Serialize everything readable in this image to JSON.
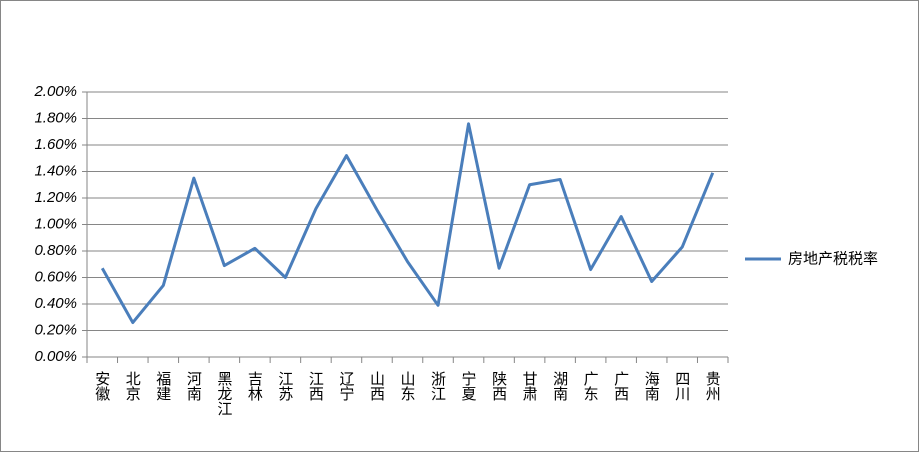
{
  "chart_data": {
    "type": "line",
    "categories": [
      "安徽",
      "北京",
      "福建",
      "河南",
      "黑龙江",
      "吉林",
      "江苏",
      "江西",
      "辽宁",
      "山西",
      "山东",
      "浙江",
      "宁夏",
      "陕西",
      "甘肃",
      "湖南",
      "广东",
      "广西",
      "海南",
      "四川",
      "贵州"
    ],
    "series": [
      {
        "name": "房地产税税率",
        "color": "#4a7ebb",
        "values": [
          0.67,
          0.26,
          0.54,
          1.35,
          0.69,
          0.82,
          0.6,
          1.12,
          1.52,
          1.11,
          0.72,
          0.39,
          1.76,
          0.67,
          1.3,
          1.34,
          0.66,
          1.06,
          0.57,
          0.83,
          1.39
        ]
      }
    ],
    "ylim": [
      0,
      2
    ],
    "yticks": [
      {
        "value": 0,
        "label": "0.00%"
      },
      {
        "value": 0.2,
        "label": "0.20%"
      },
      {
        "value": 0.4,
        "label": "0.40%"
      },
      {
        "value": 0.6,
        "label": "0.60%"
      },
      {
        "value": 0.8,
        "label": "0.80%"
      },
      {
        "value": 1,
        "label": "1.00%"
      },
      {
        "value": 1.2,
        "label": "1.20%"
      },
      {
        "value": 1.4,
        "label": "1.40%"
      },
      {
        "value": 1.6,
        "label": "1.60%"
      },
      {
        "value": 1.8,
        "label": "1.80%"
      },
      {
        "value": 2,
        "label": "2.00%"
      }
    ],
    "grid": true,
    "legend": "right"
  }
}
